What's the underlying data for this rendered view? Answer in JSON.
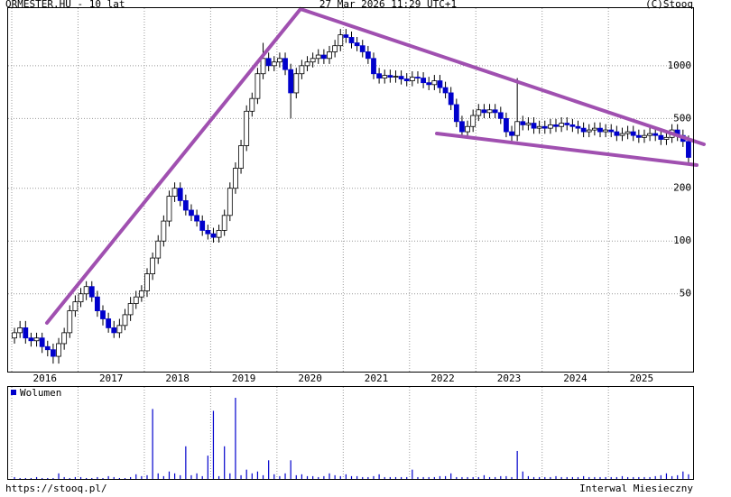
{
  "chart_data": {
    "type": "candlestick",
    "title": "ORMESTER.HU - 10 lat",
    "subtitle": "27 Mar 2026 11:29 UTC+1",
    "source": "(C)Stooq",
    "footer_left": "https://stooq.pl/",
    "footer_right": "Interwal Miesieczny",
    "log_scale": true,
    "grid": true,
    "up_color": "#ffffff",
    "down_color": "#0000cc",
    "ylim": [
      18,
      2130
    ],
    "yticks": [
      50,
      100,
      200,
      500,
      1000
    ],
    "categories": [
      "2016",
      null,
      null,
      null,
      null,
      null,
      null,
      null,
      null,
      null,
      null,
      null,
      "2017",
      null,
      null,
      null,
      null,
      null,
      null,
      null,
      null,
      null,
      null,
      null,
      "2018",
      null,
      null,
      null,
      null,
      null,
      null,
      null,
      null,
      null,
      null,
      null,
      "2019",
      null,
      null,
      null,
      null,
      null,
      null,
      null,
      null,
      null,
      null,
      null,
      "2020",
      null,
      null,
      null,
      null,
      null,
      null,
      null,
      null,
      null,
      null,
      null,
      "2021",
      null,
      null,
      null,
      null,
      null,
      null,
      null,
      null,
      null,
      null,
      null,
      "2022",
      null,
      null,
      null,
      null,
      null,
      null,
      null,
      null,
      null,
      null,
      null,
      "2023",
      null,
      null,
      null,
      null,
      null,
      null,
      null,
      null,
      null,
      null,
      null,
      "2024",
      null,
      null,
      null,
      null,
      null,
      null,
      null,
      null,
      null,
      null,
      null,
      "2025",
      null,
      null,
      null,
      null,
      null,
      null,
      null,
      null,
      null,
      null,
      null,
      null,
      null,
      null
    ],
    "open": [
      28,
      30,
      32,
      28,
      27,
      28,
      25,
      24,
      22,
      26,
      30,
      40,
      45,
      50,
      55,
      48,
      40,
      36,
      32,
      30,
      33,
      38,
      44,
      48,
      52,
      65,
      80,
      100,
      130,
      180,
      200,
      170,
      150,
      140,
      130,
      115,
      110,
      105,
      115,
      140,
      200,
      260,
      350,
      550,
      650,
      900,
      1100,
      1000,
      1050,
      1100,
      950,
      700,
      900,
      1000,
      1050,
      1100,
      1150,
      1100,
      1200,
      1300,
      1500,
      1450,
      1350,
      1300,
      1200,
      1100,
      900,
      850,
      880,
      860,
      870,
      840,
      820,
      860,
      850,
      800,
      780,
      820,
      750,
      700,
      600,
      480,
      420,
      450,
      520,
      560,
      540,
      560,
      540,
      500,
      420,
      400,
      480,
      460,
      470,
      440,
      450,
      440,
      460,
      450,
      470,
      460,
      450,
      440,
      420,
      430,
      440,
      420,
      430,
      420,
      400,
      410,
      420,
      400,
      390,
      400,
      410,
      400,
      380,
      390,
      430,
      400,
      370
    ],
    "high": [
      32,
      35,
      35,
      30,
      30,
      30,
      27,
      26,
      28,
      32,
      43,
      49,
      54,
      59,
      59,
      52,
      43,
      39,
      35,
      36,
      41,
      48,
      52,
      56,
      70,
      86,
      108,
      140,
      194,
      216,
      216,
      184,
      162,
      151,
      140,
      124,
      119,
      124,
      151,
      216,
      281,
      378,
      594,
      702,
      972,
      1350,
      1188,
      1134,
      1188,
      1188,
      1026,
      972,
      1080,
      1134,
      1188,
      1242,
      1242,
      1296,
      1404,
      1620,
      1620,
      1566,
      1458,
      1404,
      1296,
      1188,
      972,
      950,
      950,
      940,
      940,
      907,
      929,
      929,
      918,
      864,
      886,
      886,
      810,
      756,
      648,
      518,
      486,
      562,
      605,
      605,
      605,
      605,
      583,
      540,
      454,
      850,
      518,
      508,
      508,
      486,
      486,
      497,
      497,
      508,
      508,
      497,
      486,
      475,
      464,
      475,
      475,
      464,
      464,
      454,
      443,
      454,
      454,
      432,
      432,
      443,
      443,
      432,
      421,
      464,
      464,
      432,
      400
    ],
    "low": [
      26,
      28,
      26,
      25,
      25,
      23,
      22,
      20,
      20,
      24,
      28,
      37,
      42,
      46,
      45,
      37,
      33,
      30,
      28,
      28,
      31,
      35,
      41,
      45,
      48,
      60,
      74,
      93,
      121,
      167,
      158,
      140,
      130,
      121,
      107,
      102,
      98,
      98,
      107,
      130,
      186,
      242,
      326,
      512,
      605,
      837,
      930,
      930,
      977,
      884,
      500,
      651,
      837,
      930,
      977,
      1023,
      1023,
      1023,
      1116,
      1209,
      1349,
      1256,
      1209,
      1116,
      1023,
      837,
      791,
      791,
      800,
      800,
      781,
      763,
      763,
      791,
      744,
      725,
      725,
      698,
      651,
      558,
      446,
      391,
      391,
      419,
      484,
      502,
      502,
      502,
      465,
      391,
      372,
      372,
      428,
      428,
      409,
      409,
      409,
      409,
      419,
      419,
      428,
      419,
      409,
      391,
      391,
      400,
      391,
      391,
      391,
      372,
      372,
      381,
      372,
      363,
      363,
      372,
      372,
      353,
      353,
      363,
      372,
      344,
      279
    ],
    "close": [
      30,
      32,
      28,
      27,
      28,
      25,
      24,
      22,
      26,
      30,
      40,
      45,
      50,
      55,
      48,
      40,
      36,
      32,
      30,
      33,
      38,
      44,
      48,
      52,
      65,
      80,
      100,
      130,
      180,
      200,
      170,
      150,
      140,
      130,
      115,
      110,
      105,
      115,
      140,
      200,
      260,
      350,
      550,
      650,
      900,
      1100,
      1000,
      1050,
      1100,
      950,
      700,
      900,
      1000,
      1050,
      1100,
      1150,
      1100,
      1200,
      1300,
      1500,
      1450,
      1350,
      1300,
      1200,
      1100,
      900,
      850,
      880,
      860,
      870,
      840,
      820,
      860,
      850,
      800,
      780,
      820,
      750,
      700,
      600,
      480,
      420,
      450,
      520,
      560,
      540,
      560,
      540,
      500,
      420,
      400,
      480,
      460,
      470,
      440,
      450,
      440,
      460,
      450,
      470,
      460,
      450,
      440,
      420,
      430,
      440,
      420,
      430,
      420,
      400,
      410,
      420,
      400,
      390,
      400,
      410,
      400,
      380,
      390,
      430,
      400,
      370,
      300
    ],
    "volume": {
      "label": "Wolumen",
      "color": "#0000cc",
      "values": [
        2,
        1,
        1,
        1,
        2,
        1,
        1,
        1,
        6,
        2,
        1,
        2,
        2,
        1,
        1,
        2,
        1,
        3,
        2,
        1,
        1,
        2,
        5,
        3,
        4,
        75,
        6,
        3,
        8,
        6,
        4,
        35,
        4,
        6,
        3,
        25,
        73,
        3,
        35,
        6,
        87,
        4,
        10,
        6,
        8,
        4,
        20,
        5,
        3,
        6,
        20,
        4,
        5,
        3,
        3,
        2,
        3,
        6,
        4,
        3,
        5,
        3,
        3,
        2,
        2,
        3,
        5,
        2,
        2,
        2,
        2,
        2,
        10,
        2,
        2,
        2,
        2,
        3,
        3,
        6,
        2,
        2,
        2,
        2,
        2,
        4,
        2,
        2,
        3,
        3,
        2,
        30,
        8,
        3,
        2,
        2,
        2,
        2,
        3,
        2,
        2,
        2,
        2,
        3,
        2,
        2,
        2,
        2,
        2,
        2,
        3,
        2,
        2,
        2,
        2,
        2,
        3,
        4,
        6,
        3,
        4,
        8,
        5
      ]
    }
  }
}
